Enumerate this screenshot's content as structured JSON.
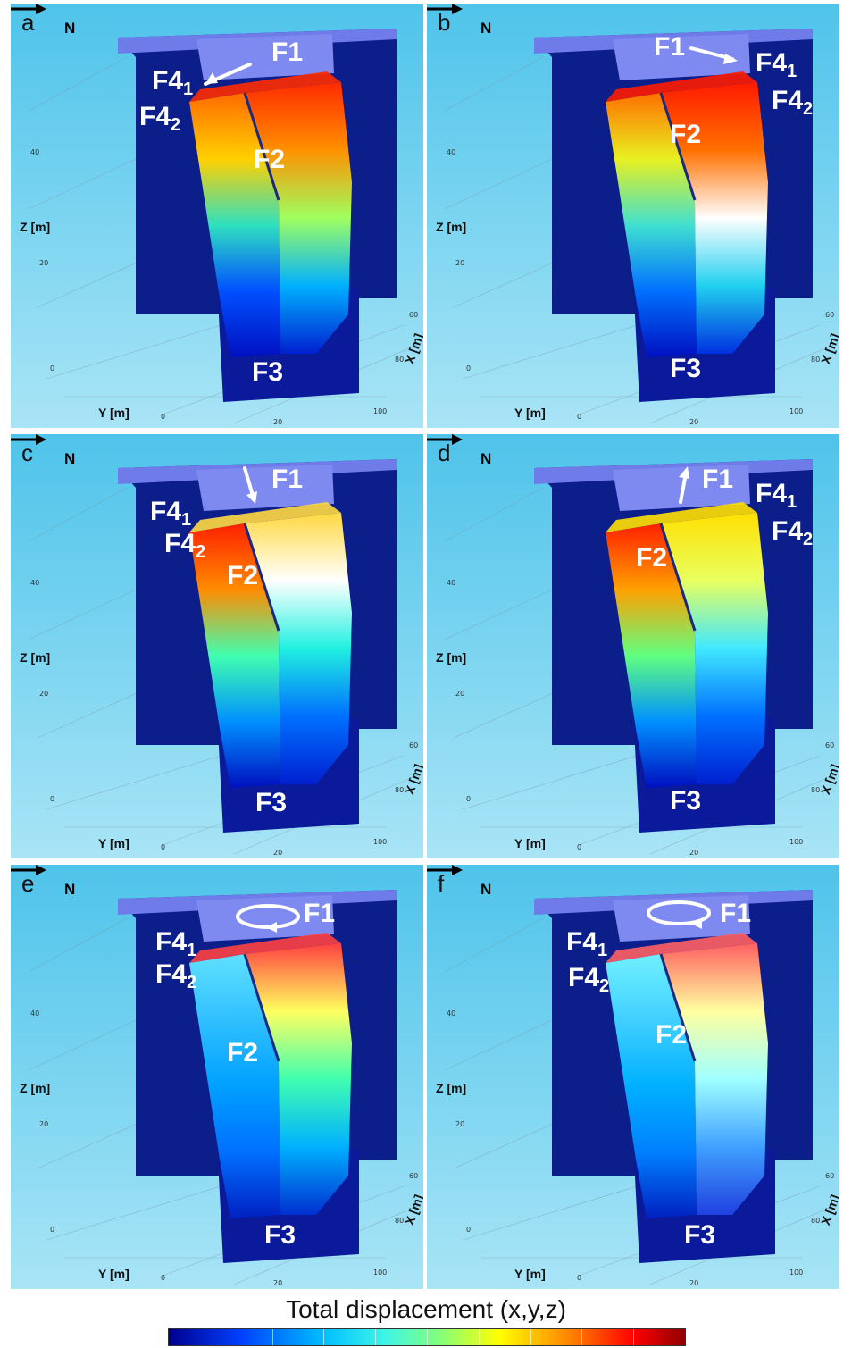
{
  "panels": [
    {
      "id": "a",
      "letter": "a",
      "north": "N",
      "arrow": "left",
      "labels": {
        "F1": "F1",
        "F4a": "F4",
        "F4a_sub": "1",
        "F4b": "F4",
        "F4b_sub": "2",
        "F2": "F2",
        "F3": "F3"
      }
    },
    {
      "id": "b",
      "letter": "b",
      "north": "N",
      "arrow": "right",
      "labels": {
        "F1": "F1",
        "F4a": "F4",
        "F4a_sub": "1",
        "F4b": "F4",
        "F4b_sub": "2",
        "F2": "F2",
        "F3": "F3"
      }
    },
    {
      "id": "c",
      "letter": "c",
      "north": "N",
      "arrow": "down",
      "labels": {
        "F1": "F1",
        "F4a": "F4",
        "F4a_sub": "1",
        "F4b": "F4",
        "F4b_sub": "2",
        "F2": "F2",
        "F3": "F3"
      }
    },
    {
      "id": "d",
      "letter": "d",
      "north": "N",
      "arrow": "up",
      "labels": {
        "F1": "F1",
        "F4a": "F4",
        "F4a_sub": "1",
        "F4b": "F4",
        "F4b_sub": "2",
        "F2": "F2",
        "F3": "F3"
      }
    },
    {
      "id": "e",
      "letter": "e",
      "north": "N",
      "arrow": "rotate-clockwise",
      "labels": {
        "F1": "F1",
        "F4a": "F4",
        "F4a_sub": "1",
        "F4b": "F4",
        "F4b_sub": "2",
        "F2": "F2",
        "F3": "F3"
      }
    },
    {
      "id": "f",
      "letter": "f",
      "north": "N",
      "arrow": "rotate-counterclockwise",
      "labels": {
        "F1": "F1",
        "F4a": "F4",
        "F4a_sub": "1",
        "F4b": "F4",
        "F4b_sub": "2",
        "F2": "F2",
        "F3": "F3"
      }
    }
  ],
  "axes": {
    "z_label": "Z [m]",
    "y_label": "Y [m]",
    "x_label": "X [m]",
    "z_ticks": [
      "40",
      "20",
      "0"
    ],
    "y_ticks": [
      "0",
      "20",
      "100"
    ],
    "x_ticks": [
      "60",
      "80"
    ]
  },
  "legend": {
    "title": "Total displacement (x,y,z)",
    "colors": [
      "#00008f",
      "#0040ff",
      "#00bfff",
      "#3ff6e6",
      "#7fff7f",
      "#ffff00",
      "#ff8000",
      "#ff0000",
      "#8f0000"
    ]
  }
}
